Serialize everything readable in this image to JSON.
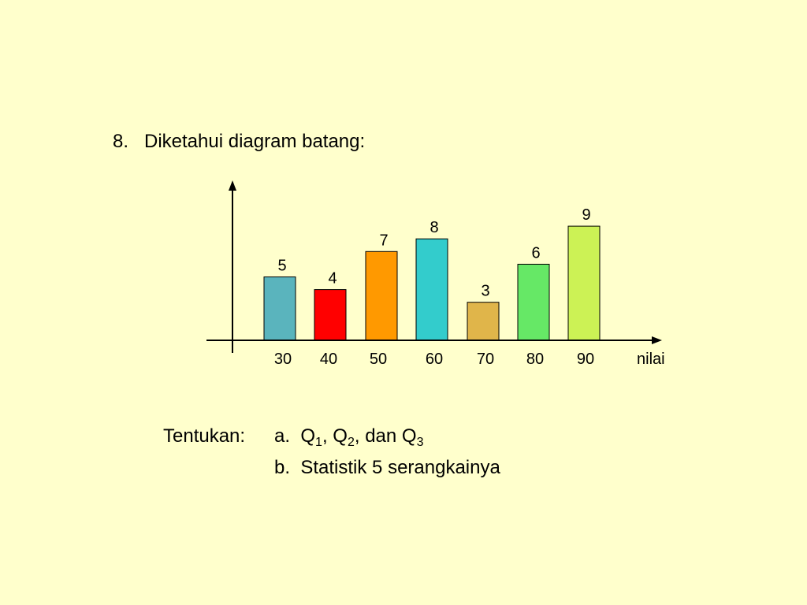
{
  "question": {
    "number": "8.",
    "title": "Diketahui diagram batang:"
  },
  "task": {
    "prefix": "Tentukan:",
    "item_a": {
      "letter": "a.",
      "q": "Q",
      "sub1": "1",
      "sep1": ", ",
      "sub2": "2",
      "sep2": ", dan ",
      "sub3": "3"
    },
    "item_b": {
      "letter": "b.",
      "text": "Statistik 5 serangkainya"
    }
  },
  "chart_data": {
    "type": "bar",
    "categories": [
      "30",
      "40",
      "50",
      "60",
      "70",
      "80",
      "90"
    ],
    "values": [
      5,
      4,
      7,
      8,
      3,
      6,
      9
    ],
    "xlabel": "nilai",
    "ylabel": "",
    "ylim": [
      0,
      10.8
    ],
    "grid": false,
    "legend": "none",
    "colors": [
      "#5ab4bd",
      "#ff0000",
      "#ff9900",
      "#33cccc",
      "#e0b54a",
      "#66e866",
      "#ccf255"
    ],
    "axis_color": "#000000"
  }
}
